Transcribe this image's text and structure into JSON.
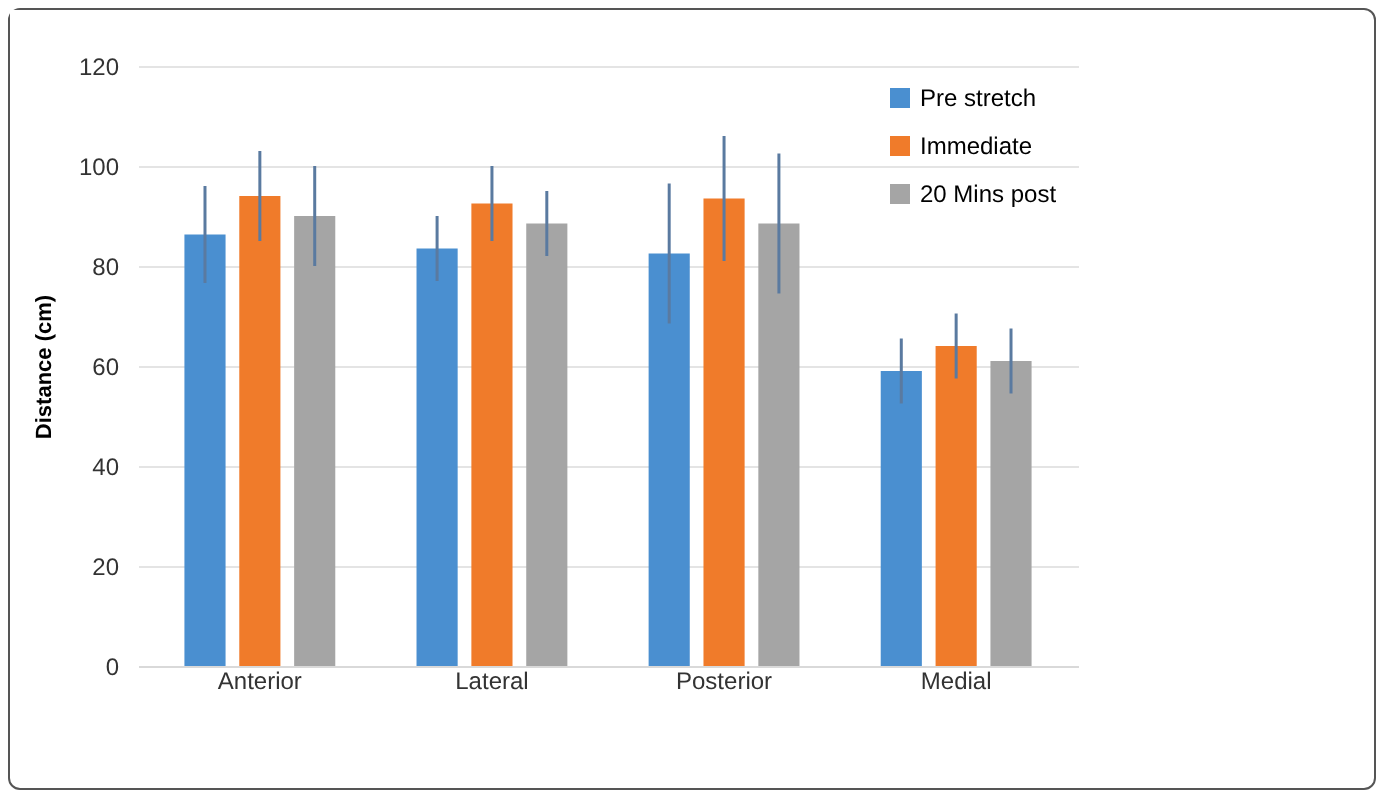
{
  "chart_data": {
    "type": "bar",
    "ylabel": "Distance (cm)",
    "categories": [
      "Anterior",
      "Lateral",
      "Posterior",
      "Medial"
    ],
    "series": [
      {
        "name": "Pre stretch",
        "color": "#4a8fd0",
        "values": [
          86.3,
          83.5,
          82.5,
          59
        ],
        "errors": [
          9.7,
          6.5,
          14,
          6.5
        ]
      },
      {
        "name": "Immediate",
        "color": "#f07b2a",
        "values": [
          94,
          92.5,
          93.5,
          64
        ],
        "errors": [
          9,
          7.5,
          12.5,
          6.5
        ]
      },
      {
        "name": "20 Mins post",
        "color": "#a5a5a5",
        "values": [
          90,
          88.5,
          88.5,
          61
        ],
        "errors": [
          10,
          6.5,
          14,
          6.5
        ]
      }
    ],
    "ylim": [
      0,
      120
    ],
    "yticks": [
      0,
      20,
      40,
      60,
      80,
      100,
      120
    ],
    "grid": "y",
    "legend": "top right"
  }
}
